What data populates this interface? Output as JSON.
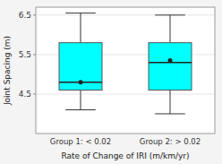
{
  "chart_data": {
    "type": "box",
    "xlabel": "Rate of Change of IRI (m/km/yr)",
    "ylabel": "Joint Spacing (m)",
    "categories": [
      "Group 1: < 0.02",
      "Group 2: > 0.02"
    ],
    "boxes": [
      {
        "whislo": 4.1,
        "q1": 4.6,
        "med": 4.8,
        "q3": 5.8,
        "whishi": 6.55,
        "mean": 4.8
      },
      {
        "whislo": 4.0,
        "q1": 4.6,
        "med": 5.3,
        "q3": 5.8,
        "whishi": 6.5,
        "mean": 5.35
      }
    ],
    "color": "#00FFFF",
    "ylim": [
      3.5,
      6.7
    ],
    "yticks": [
      4.5,
      5.5,
      6.5
    ]
  }
}
